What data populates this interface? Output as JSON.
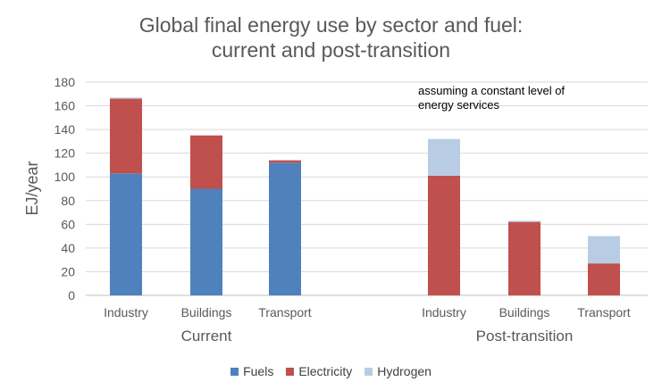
{
  "chart_data": {
    "type": "bar",
    "stacked": true,
    "title": [
      "Global final energy use by sector and fuel:",
      "current and post-transition"
    ],
    "ylabel": "EJ/year",
    "ylim": [
      0,
      180
    ],
    "yticks": [
      0,
      20,
      40,
      60,
      80,
      100,
      120,
      140,
      160,
      180
    ],
    "grid": true,
    "annotation": [
      "assuming a constant level of",
      "energy services"
    ],
    "groups": [
      {
        "name": "Current",
        "categories": [
          "Industry",
          "Buildings",
          "Transport"
        ]
      },
      {
        "name": "Post-transition",
        "categories": [
          "Industry",
          "Buildings",
          "Transport"
        ]
      }
    ],
    "series": [
      {
        "name": "Fuels",
        "color": "#4f81bd",
        "values": [
          103,
          90,
          112,
          0,
          0,
          0
        ]
      },
      {
        "name": "Electricity",
        "color": "#c0504d",
        "values": [
          63,
          45,
          2,
          101,
          62,
          27
        ]
      },
      {
        "name": "Hydrogen",
        "color": "#b8cce4",
        "values": [
          1,
          0,
          0,
          31,
          1,
          23
        ]
      }
    ],
    "legend_position": "bottom"
  }
}
